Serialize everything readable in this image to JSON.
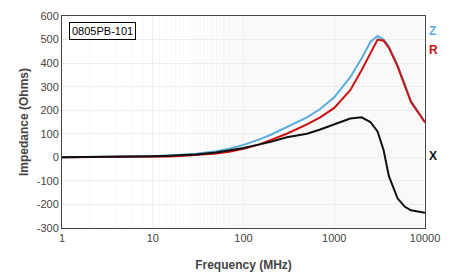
{
  "chart_data": {
    "type": "line",
    "title": "0805PB-101",
    "x_label": "Frequency (MHz)",
    "y_label": "Impedance (Ohms)",
    "log": "x",
    "grid": true,
    "xlim": [
      1,
      10000
    ],
    "xticks": [
      1,
      10,
      100,
      1000,
      10000
    ],
    "ylim": [
      -300,
      600
    ],
    "yticks": [
      -300,
      -200,
      -100,
      0,
      100,
      200,
      300,
      400,
      500,
      600
    ],
    "x": [
      1,
      2,
      3,
      5,
      7,
      10,
      15,
      20,
      30,
      50,
      70,
      100,
      150,
      200,
      300,
      500,
      700,
      1000,
      1500,
      2000,
      2500,
      3000,
      3500,
      4000,
      5000,
      6000,
      7000,
      10000
    ],
    "series": [
      {
        "name": "Z",
        "color": "#5aabdf",
        "values": [
          0.5,
          1.0,
          1.5,
          2.5,
          3.5,
          5.0,
          7.5,
          10.0,
          15.0,
          26.0,
          37.0,
          53.0,
          76.0,
          96.0,
          128.0,
          170.0,
          205.0,
          255.0,
          340.0,
          420.0,
          490.0,
          515.0,
          500.0,
          470.0,
          390.0,
          310.0,
          240.0,
          150.0
        ]
      },
      {
        "name": "R",
        "color": "#cc1111",
        "values": [
          0.2,
          0.4,
          0.6,
          1.0,
          1.4,
          2.0,
          3.5,
          5.5,
          9.0,
          16.0,
          24.0,
          36.0,
          55.0,
          73.0,
          100.0,
          140.0,
          170.0,
          210.0,
          285.0,
          370.0,
          445.0,
          500.0,
          495.0,
          465.0,
          385.0,
          305.0,
          235.0,
          148.0
        ]
      },
      {
        "name": "X",
        "color": "#111111",
        "values": [
          0.4,
          0.9,
          1.3,
          2.2,
          3.0,
          4.5,
          6.5,
          8.5,
          12.0,
          21.0,
          29.0,
          40.0,
          55.0,
          66.0,
          85.0,
          100.0,
          118.0,
          140.0,
          165.0,
          170.0,
          150.0,
          110.0,
          30.0,
          -80.0,
          -175.0,
          -210.0,
          -225.0,
          -235.0
        ]
      }
    ]
  }
}
